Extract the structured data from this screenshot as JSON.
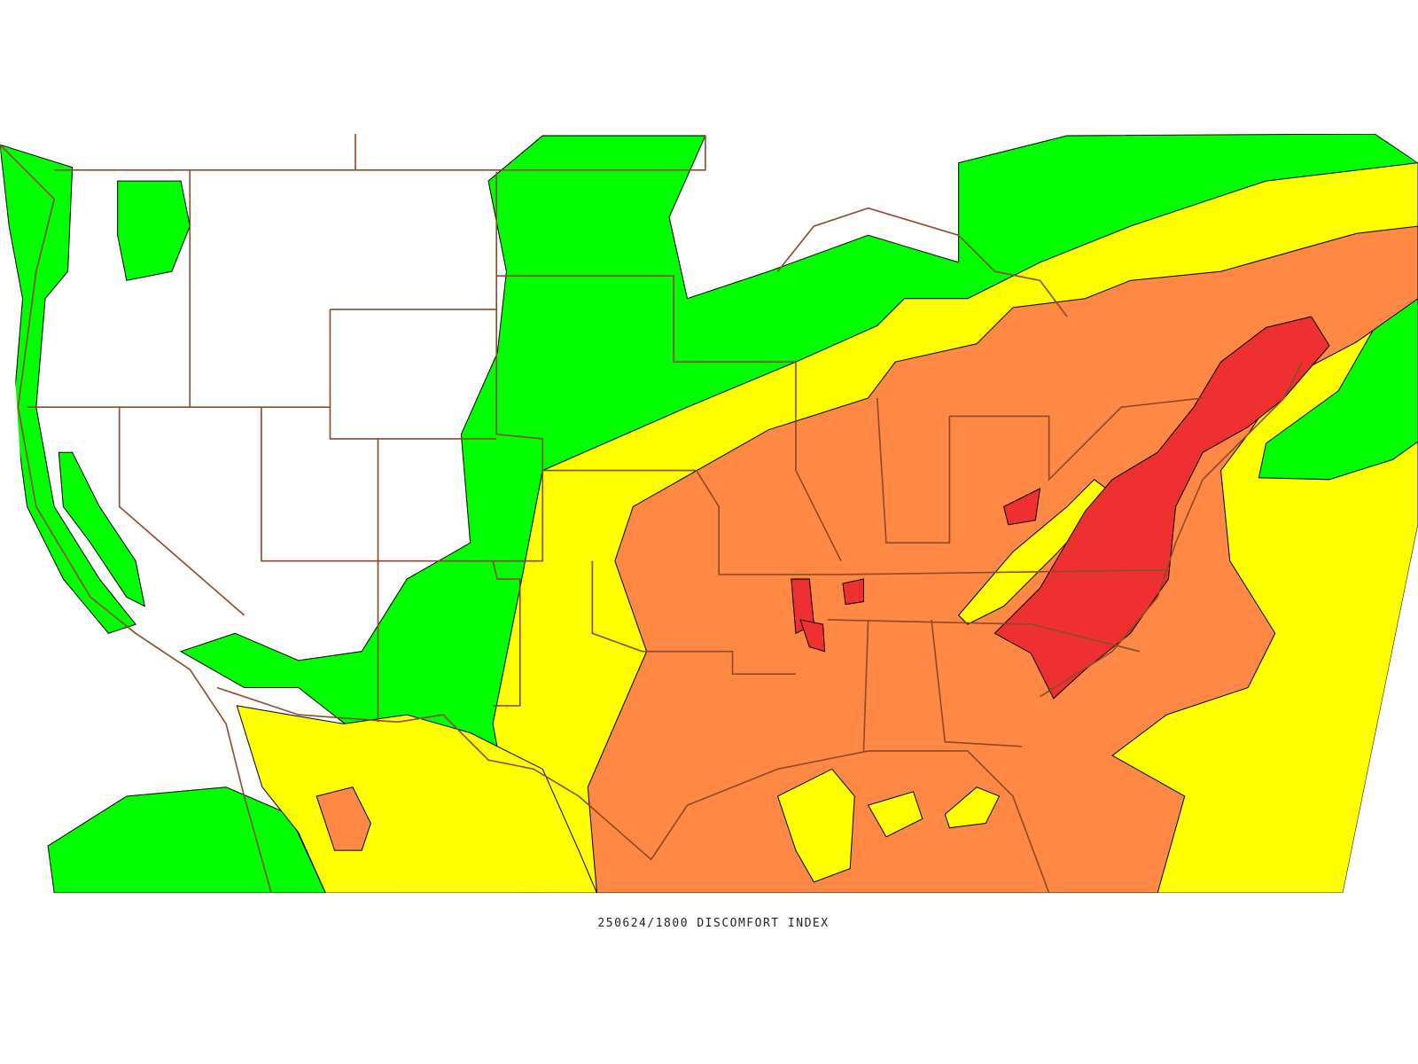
{
  "caption": "250624/1800 DISCOMFORT INDEX"
}
